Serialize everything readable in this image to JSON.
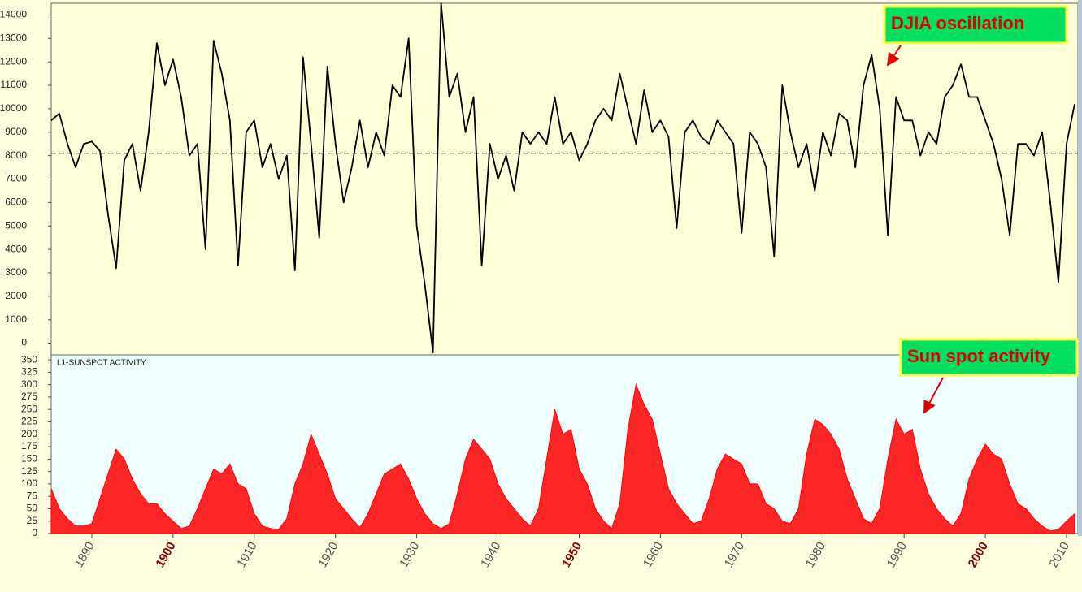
{
  "chart_data": [
    {
      "type": "line",
      "annotation": "DJIA oscillation",
      "color": "#000000",
      "xlim": [
        1885,
        2011.4
      ],
      "ylim": [
        -500,
        14500
      ],
      "yticks": [
        0,
        1000,
        2000,
        3000,
        4000,
        5000,
        6000,
        7000,
        8000,
        9000,
        10000,
        11000,
        12000,
        13000,
        14000
      ],
      "reference_line": 8100,
      "x": [
        1885,
        1886,
        1887,
        1888,
        1889,
        1890,
        1891,
        1892,
        1893,
        1894,
        1895,
        1896,
        1897,
        1898,
        1899,
        1900,
        1901,
        1902,
        1903,
        1904,
        1905,
        1906,
        1907,
        1908,
        1909,
        1910,
        1911,
        1912,
        1913,
        1914,
        1915,
        1916,
        1917,
        1918,
        1919,
        1920,
        1921,
        1922,
        1923,
        1924,
        1925,
        1926,
        1927,
        1928,
        1929,
        1930,
        1931,
        1932,
        1933,
        1934,
        1935,
        1936,
        1937,
        1938,
        1939,
        1940,
        1941,
        1942,
        1943,
        1944,
        1945,
        1946,
        1947,
        1948,
        1949,
        1950,
        1951,
        1952,
        1953,
        1954,
        1955,
        1956,
        1957,
        1958,
        1959,
        1960,
        1961,
        1962,
        1963,
        1964,
        1965,
        1966,
        1967,
        1968,
        1969,
        1970,
        1971,
        1972,
        1973,
        1974,
        1975,
        1976,
        1977,
        1978,
        1979,
        1980,
        1981,
        1982,
        1983,
        1984,
        1985,
        1986,
        1987,
        1988,
        1989,
        1990,
        1991,
        1992,
        1993,
        1994,
        1995,
        1996,
        1997,
        1998,
        1999,
        2000,
        2001,
        2002,
        2003,
        2004,
        2005,
        2006,
        2007,
        2008,
        2009,
        2010,
        2011
      ],
      "values": [
        9500,
        9800,
        8500,
        7500,
        8500,
        8600,
        8200,
        5500,
        3200,
        7800,
        8500,
        6500,
        9000,
        12800,
        11000,
        12100,
        10500,
        8000,
        8500,
        4000,
        12900,
        11500,
        9500,
        3300,
        9000,
        9500,
        7500,
        8500,
        7000,
        8000,
        3100,
        12200,
        8500,
        4500,
        11800,
        8500,
        6000,
        7500,
        9500,
        7500,
        9000,
        8000,
        11000,
        10500,
        13000,
        5000,
        2500,
        -400,
        14500,
        10500,
        11500,
        9000,
        10500,
        3300,
        8500,
        7000,
        8000,
        6500,
        9000,
        8500,
        9000,
        8500,
        10500,
        8500,
        9000,
        7800,
        8500,
        9500,
        10000,
        9500,
        11500,
        10000,
        8500,
        10800,
        9000,
        9500,
        8800,
        4900,
        9000,
        9500,
        8800,
        8500,
        9500,
        9000,
        8500,
        4700,
        9000,
        8500,
        7500,
        3700,
        11000,
        9000,
        7500,
        8500,
        6500,
        9000,
        8000,
        9800,
        9500,
        7500,
        11000,
        12300,
        10000,
        4600,
        10500,
        9500,
        9500,
        8000,
        9000,
        8500,
        10500,
        11000,
        11900,
        10500,
        10500,
        9500,
        8500,
        7000,
        4600,
        8500,
        8500,
        8000,
        9000,
        6000,
        2600,
        8500,
        10200
      ]
    },
    {
      "type": "area",
      "title": "L1-SUNSPOT ACTIVITY",
      "annotation": "Sun spot activity",
      "color": "#ff0000",
      "xlim": [
        1885,
        2011.4
      ],
      "ylim": [
        0,
        360
      ],
      "yticks": [
        0,
        25,
        50,
        75,
        100,
        125,
        150,
        175,
        200,
        225,
        250,
        275,
        300,
        325,
        350
      ],
      "xticks": [
        1890,
        1900,
        1910,
        1920,
        1930,
        1940,
        1950,
        1960,
        1970,
        1980,
        1990,
        2000,
        2010
      ],
      "xtick_colors": [
        "#555555",
        "#8b0000",
        "#555555",
        "#555555",
        "#555555",
        "#555555",
        "#8b0000",
        "#555555",
        "#555555",
        "#555555",
        "#555555",
        "#8b0000",
        "#555555"
      ],
      "x": [
        1885,
        1886,
        1887,
        1888,
        1889,
        1890,
        1891,
        1892,
        1893,
        1894,
        1895,
        1896,
        1897,
        1898,
        1899,
        1900,
        1901,
        1902,
        1903,
        1904,
        1905,
        1906,
        1907,
        1908,
        1909,
        1910,
        1911,
        1912,
        1913,
        1914,
        1915,
        1916,
        1917,
        1918,
        1919,
        1920,
        1921,
        1922,
        1923,
        1924,
        1925,
        1926,
        1927,
        1928,
        1929,
        1930,
        1931,
        1932,
        1933,
        1934,
        1935,
        1936,
        1937,
        1938,
        1939,
        1940,
        1941,
        1942,
        1943,
        1944,
        1945,
        1946,
        1947,
        1948,
        1949,
        1950,
        1951,
        1952,
        1953,
        1954,
        1955,
        1956,
        1957,
        1958,
        1959,
        1960,
        1961,
        1962,
        1963,
        1964,
        1965,
        1966,
        1967,
        1968,
        1969,
        1970,
        1971,
        1972,
        1973,
        1974,
        1975,
        1976,
        1977,
        1978,
        1979,
        1980,
        1981,
        1982,
        1983,
        1984,
        1985,
        1986,
        1987,
        1988,
        1989,
        1990,
        1991,
        1992,
        1993,
        1994,
        1995,
        1996,
        1997,
        1998,
        1999,
        2000,
        2001,
        2002,
        2003,
        2004,
        2005,
        2006,
        2007,
        2008,
        2009,
        2010,
        2011
      ],
      "values": [
        90,
        50,
        30,
        15,
        15,
        20,
        70,
        120,
        170,
        150,
        110,
        80,
        60,
        60,
        40,
        25,
        10,
        15,
        50,
        90,
        130,
        120,
        140,
        100,
        90,
        40,
        15,
        10,
        8,
        30,
        100,
        140,
        200,
        160,
        120,
        70,
        50,
        30,
        12,
        40,
        80,
        120,
        130,
        140,
        110,
        70,
        40,
        20,
        10,
        20,
        80,
        150,
        190,
        170,
        150,
        100,
        70,
        50,
        30,
        15,
        50,
        150,
        250,
        200,
        210,
        130,
        100,
        50,
        25,
        10,
        60,
        210,
        300,
        260,
        230,
        160,
        90,
        60,
        40,
        20,
        25,
        70,
        130,
        160,
        150,
        140,
        100,
        100,
        60,
        50,
        25,
        20,
        50,
        160,
        230,
        220,
        200,
        170,
        110,
        70,
        30,
        20,
        50,
        150,
        230,
        200,
        210,
        130,
        80,
        50,
        30,
        15,
        40,
        110,
        150,
        180,
        160,
        150,
        100,
        60,
        50,
        30,
        15,
        5,
        8,
        25,
        40
      ]
    }
  ]
}
